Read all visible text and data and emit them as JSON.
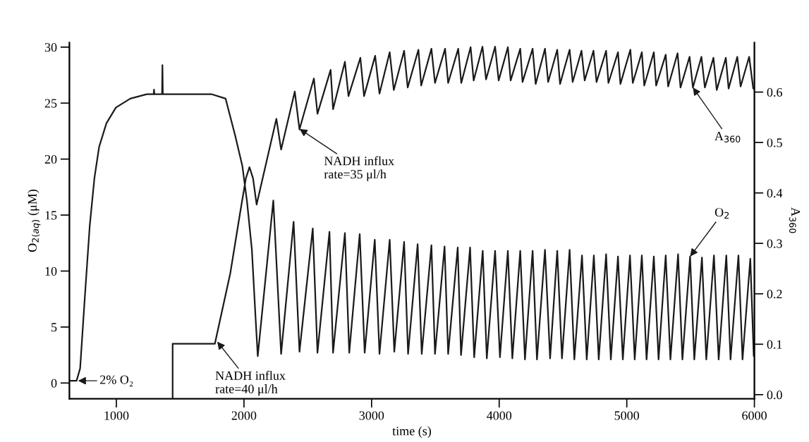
{
  "chart_data": {
    "type": "line",
    "xlabel": "time (s)",
    "ylabel": "O$_{2(aq)}$ (μM)",
    "y2label": "A$_{360}$",
    "xlim": [
      632,
      6000
    ],
    "xticks": [
      1000,
      2000,
      3000,
      4000,
      5000,
      6000
    ],
    "ylim": [
      -1.4,
      30.4
    ],
    "yticks": [
      0,
      5,
      10,
      15,
      20,
      25,
      30
    ],
    "y2lim": [
      -0.008,
      0.698
    ],
    "y2ticks": [
      {
        "value": 0,
        "label": "0.0"
      },
      0.1,
      0.2,
      0.3,
      0.4,
      0.5,
      0.6
    ],
    "grid": false,
    "legend": false,
    "marker": "none",
    "line_style": "solid",
    "series": [
      {
        "color": "#1a1a1a",
        "axis": "y",
        "x": [
          632,
          688,
          716,
          753,
          791,
          828,
          865,
          922,
          996,
          1109,
          1239,
          1292,
          1295,
          1298,
          1358,
          1361,
          1364,
          1744,
          1856,
          1931,
          1987,
          2024,
          2062,
          2090,
          2108,
          2230,
          2291,
          2389,
          2435,
          2539,
          2576,
          2670,
          2698,
          2791,
          2825,
          2907,
          2946,
          3025,
          3062,
          3142,
          3178,
          3255,
          3286,
          3361,
          3393,
          3469,
          3497,
          3572,
          3600,
          3675,
          3701,
          3772,
          3804,
          3871,
          3903,
          3968,
          4006,
          4068,
          4103,
          4165,
          4202,
          4262,
          4296,
          4359,
          4399,
          4455,
          4492,
          4552,
          4589,
          4649,
          4686,
          4742,
          4780,
          4838,
          4875,
          4931,
          4969,
          5025,
          5062,
          5118,
          5155,
          5212,
          5249,
          5305,
          5342,
          5402,
          5436,
          5496,
          5529,
          5589,
          5623,
          5683,
          5720,
          5780,
          5813,
          5875,
          5907,
          5968,
          5995
        ],
        "values": [
          0.2,
          0.2,
          1.3,
          7.7,
          14.0,
          18.3,
          21.1,
          23.2,
          24.6,
          25.4,
          25.8,
          25.8,
          26.2,
          25.8,
          25.8,
          28.4,
          25.8,
          25.8,
          25.4,
          22.1,
          19.4,
          16.2,
          11.9,
          6.0,
          2.4,
          16.3,
          2.6,
          14.4,
          2.8,
          13.8,
          2.7,
          13.5,
          2.7,
          13.4,
          2.7,
          13.3,
          2.7,
          12.8,
          2.6,
          12.8,
          2.8,
          12.6,
          2.6,
          12.4,
          2.6,
          12.3,
          2.6,
          12.2,
          2.6,
          12.1,
          2.5,
          12.1,
          2.3,
          11.8,
          2.2,
          11.8,
          2.3,
          11.8,
          2.2,
          11.8,
          2.1,
          11.8,
          2.1,
          11.9,
          2.2,
          11.8,
          2.2,
          11.9,
          2.1,
          11.4,
          2.1,
          11.4,
          2.1,
          11.5,
          2.1,
          11.3,
          2.1,
          11.4,
          2.1,
          11.4,
          2.1,
          11.3,
          2.1,
          11.4,
          2.1,
          11.5,
          2.1,
          11.3,
          2.1,
          11.2,
          2.1,
          11.4,
          2.1,
          11.4,
          2.1,
          11.4,
          2.1,
          11.1,
          2.4
        ]
      },
      {
        "color": "#1a1a1a",
        "axis": "y2",
        "x": [
          1441,
          1441,
          1772,
          1893,
          1968,
          2015,
          2043,
          2071,
          2099,
          2254,
          2291,
          2398,
          2435,
          2548,
          2576,
          2679,
          2698,
          2791,
          2819,
          2912,
          2941,
          3028,
          3062,
          3142,
          3174,
          3255,
          3283,
          3367,
          3389,
          3469,
          3497,
          3576,
          3600,
          3679,
          3703,
          3776,
          3800,
          3869,
          3897,
          3968,
          3996,
          4068,
          4090,
          4165,
          4183,
          4262,
          4286,
          4359,
          4384,
          4455,
          4477,
          4552,
          4576,
          4645,
          4670,
          4739,
          4763,
          4838,
          4856,
          4931,
          4950,
          5028,
          5047,
          5118,
          5137,
          5212,
          5230,
          5305,
          5324,
          5398,
          5421,
          5492,
          5518,
          5585,
          5612,
          5679,
          5705,
          5776,
          5798,
          5866,
          5892,
          5959,
          5991
        ],
        "values": [
          -0.008,
          0.101,
          0.101,
          0.241,
          0.358,
          0.429,
          0.451,
          0.429,
          0.377,
          0.547,
          0.486,
          0.601,
          0.526,
          0.627,
          0.557,
          0.644,
          0.566,
          0.66,
          0.592,
          0.668,
          0.592,
          0.672,
          0.597,
          0.679,
          0.604,
          0.682,
          0.609,
          0.684,
          0.613,
          0.686,
          0.618,
          0.686,
          0.618,
          0.686,
          0.618,
          0.689,
          0.623,
          0.69,
          0.625,
          0.69,
          0.623,
          0.689,
          0.623,
          0.686,
          0.62,
          0.686,
          0.616,
          0.686,
          0.62,
          0.684,
          0.616,
          0.684,
          0.62,
          0.682,
          0.623,
          0.682,
          0.62,
          0.682,
          0.618,
          0.679,
          0.616,
          0.684,
          0.618,
          0.679,
          0.613,
          0.679,
          0.613,
          0.674,
          0.611,
          0.677,
          0.609,
          0.67,
          0.609,
          0.67,
          0.609,
          0.668,
          0.604,
          0.668,
          0.607,
          0.67,
          0.611,
          0.67,
          0.607
        ]
      }
    ],
    "annotations": [
      {
        "text": "2% O₂",
        "x": 700,
        "y": 0.2
      },
      {
        "text": "NADH influx\nrate=40 μl/h",
        "x": 1790,
        "y": 3.7
      },
      {
        "text": "NADH influx\nrate=35 μl/h",
        "x": 2435,
        "y": 22.7
      },
      {
        "text": "A$_{360}$",
        "x": 5518,
        "y": 26.4
      },
      {
        "text": "O$_{2}$",
        "x": 5496,
        "y": 11.3
      }
    ]
  }
}
